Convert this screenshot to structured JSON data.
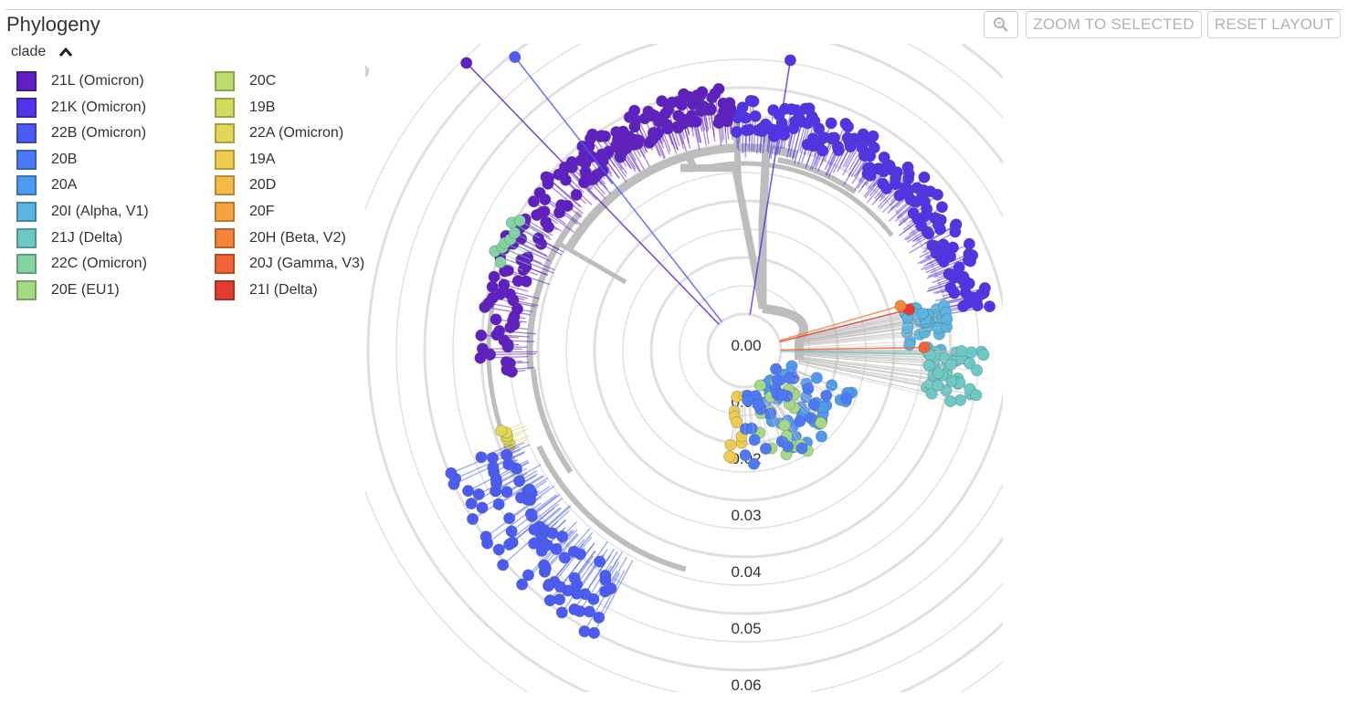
{
  "header": {
    "title": "Phylogeny"
  },
  "toolbar": {
    "zoom_icon": "magnifier-icon",
    "zoom_selected_label": "ZOOM TO SELECTED",
    "reset_layout_label": "RESET LAYOUT"
  },
  "legend": {
    "toggle_label": "clade",
    "toggle_icon": "chevron-up-icon",
    "items": [
      {
        "label": "21L (Omicron)",
        "color": "#5F1FC3"
      },
      {
        "label": "21K (Omicron)",
        "color": "#5133E8"
      },
      {
        "label": "22B (Omicron)",
        "color": "#4A5CF5"
      },
      {
        "label": "20B",
        "color": "#4C7AF6"
      },
      {
        "label": "20A",
        "color": "#4F9AF1"
      },
      {
        "label": "20I (Alpha, V1)",
        "color": "#5BB5E0"
      },
      {
        "label": "21J (Delta)",
        "color": "#6CC9C6"
      },
      {
        "label": "22C (Omicron)",
        "color": "#84D3A2"
      },
      {
        "label": "20E (EU1)",
        "color": "#A3DA83"
      },
      {
        "label": "20C",
        "color": "#BBDC6D"
      },
      {
        "label": "19B",
        "color": "#D1DB5C"
      },
      {
        "label": "22A (Omicron)",
        "color": "#E2D655"
      },
      {
        "label": "19A",
        "color": "#F0CC4E"
      },
      {
        "label": "20D",
        "color": "#F6BA46"
      },
      {
        "label": "20F",
        "color": "#F8A23E"
      },
      {
        "label": "20H (Beta, V2)",
        "color": "#F6843A"
      },
      {
        "label": "20J (Gamma, V3)",
        "color": "#F26235"
      },
      {
        "label": "21I (Delta)",
        "color": "#E63A2E"
      }
    ]
  },
  "tree": {
    "type": "radial-phylogeny",
    "branch_color": "#BDBDBD",
    "ring_color": "#DDDDDD",
    "divergence_ticks": [
      "0.00",
      "0.01",
      "0.02",
      "0.03",
      "0.04",
      "0.05",
      "0.06"
    ],
    "clade_groups": [
      {
        "clade": "21K (Omicron)",
        "start_deg": -92,
        "end_deg": -10,
        "count": 150
      },
      {
        "clade": "21L (Omicron)",
        "start_deg": -133,
        "end_deg": -93,
        "count": 95
      },
      {
        "clade": "21L (Omicron)",
        "start_deg": -185,
        "end_deg": -133,
        "count": 70
      },
      {
        "clade": "22C (Omicron)",
        "start_deg": -160,
        "end_deg": -150,
        "count": 8
      },
      {
        "clade": "22A (Omicron)",
        "start_deg": 158,
        "end_deg": 162,
        "count": 6
      },
      {
        "clade": "22B (Omicron)",
        "start_deg": 118,
        "end_deg": 158,
        "count": 80
      },
      {
        "clade": "20I (Alpha, V1)",
        "start_deg": -16,
        "end_deg": 0,
        "count": 40
      },
      {
        "clade": "21J (Delta)",
        "start_deg": 0,
        "end_deg": 14,
        "count": 40
      },
      {
        "clade": "20A",
        "start_deg": 18,
        "end_deg": 70,
        "count": 40
      },
      {
        "clade": "20E (EU1)",
        "start_deg": 40,
        "end_deg": 85,
        "count": 20
      },
      {
        "clade": "19A",
        "start_deg": 85,
        "end_deg": 100,
        "count": 10
      },
      {
        "clade": "20B",
        "start_deg": 25,
        "end_deg": 90,
        "count": 30
      }
    ]
  }
}
